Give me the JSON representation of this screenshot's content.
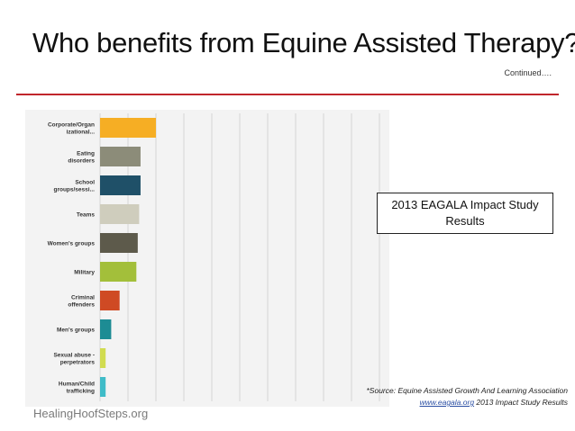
{
  "slide": {
    "title": "Who benefits from Equine Assisted Therapy?",
    "continued": "Continued….",
    "callout_line1": "2013 EAGALA Impact Study",
    "callout_line2": "Results",
    "source_part1": "*Source: Equine Assisted Growth And Learning Association ",
    "source_link": "www.eagala.org",
    "source_part2": " 2013 Impact Study Results",
    "footer": "HealingHoofSteps.org",
    "colors": {
      "rule": "#c0262c",
      "link": "#2a4ea3"
    }
  },
  "chart_data": {
    "type": "bar",
    "orientation": "horizontal",
    "categories": [
      [
        "Corporate/Organ",
        "izational..."
      ],
      [
        "Eating",
        "disorders"
      ],
      [
        "School",
        "groups/sessi..."
      ],
      [
        "Teams"
      ],
      [
        "Women's groups"
      ],
      [
        "Military"
      ],
      [
        "Criminal",
        "offenders"
      ],
      [
        "Men's groups"
      ],
      [
        "Sexual abuse -",
        "perpetrators"
      ],
      [
        "Human/Child",
        "trafficking"
      ]
    ],
    "values": [
      20,
      14.5,
      14.5,
      14,
      13.5,
      13,
      7,
      4,
      2,
      2
    ],
    "colors": [
      "#f6ae24",
      "#8c8c79",
      "#1f5068",
      "#cfcdbd",
      "#5d5a4b",
      "#a3bf3a",
      "#cf4a24",
      "#1d8c94",
      "#d1dc50",
      "#3fbcc8"
    ],
    "xticks": [
      "0%",
      "10%",
      "20%",
      "30%",
      "40%",
      "50%",
      "60%",
      "70%",
      "80%",
      "90%",
      "100%"
    ],
    "xlim": [
      0,
      100
    ],
    "grid": true
  }
}
